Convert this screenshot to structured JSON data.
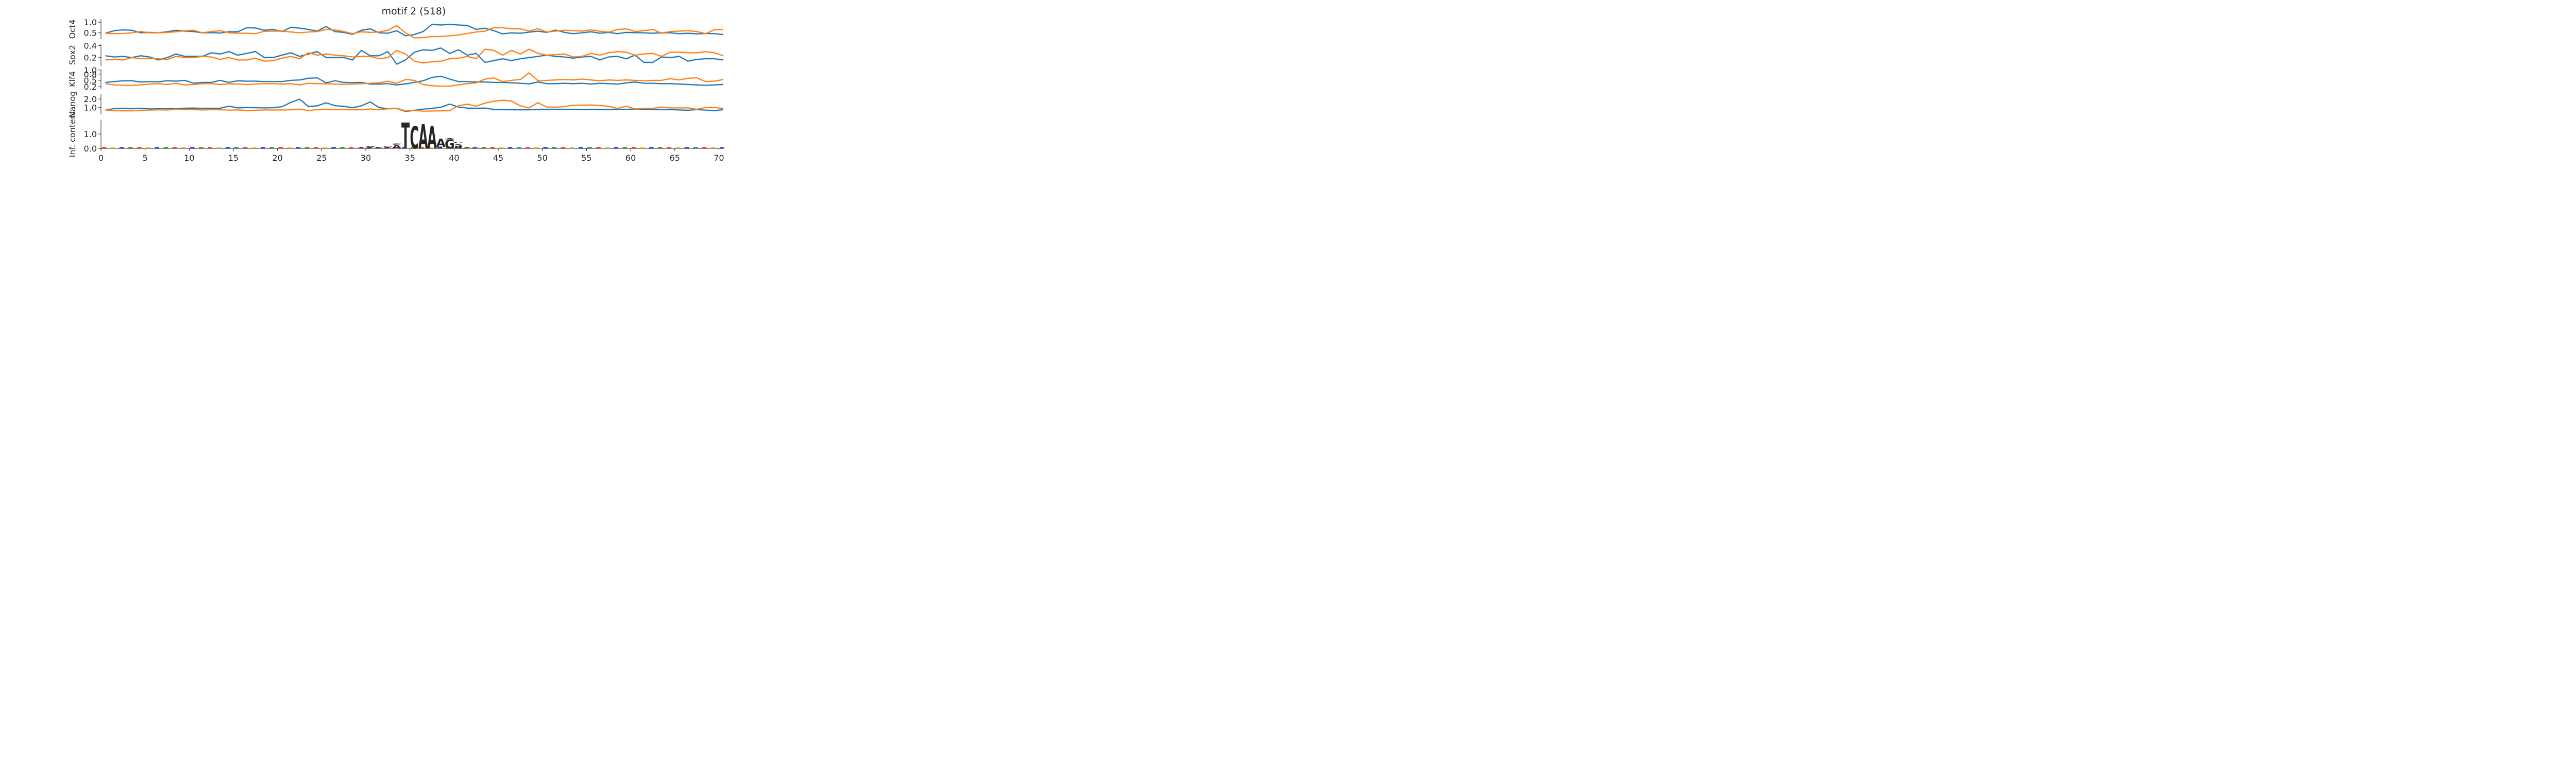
{
  "title": "motif 2 (518)",
  "colors": {
    "series_a": "#1f77b4",
    "series_b": "#ff7f0e",
    "axis": "#262626",
    "logo_A": "#008000",
    "logo_C": "#0000ff",
    "logo_G": "#ffa500",
    "logo_T": "#ff0000"
  },
  "chart_data": [
    {
      "type": "line",
      "title": "",
      "xlabel": "",
      "ylabel": "Oct4",
      "xlim": [
        0,
        70.5
      ],
      "ylim": [
        0.2,
        1.15
      ],
      "yticks": [
        0.5,
        1.0
      ],
      "ytick_labels": [
        "0.5",
        "1.0"
      ],
      "x_start": 0.5,
      "series": [
        {
          "color": "#1f77b4",
          "values": [
            0.48,
            0.6,
            0.64,
            0.62,
            0.5,
            0.52,
            0.5,
            0.55,
            0.62,
            0.58,
            0.56,
            0.5,
            0.51,
            0.49,
            0.55,
            0.55,
            0.74,
            0.73,
            0.62,
            0.66,
            0.56,
            0.76,
            0.72,
            0.66,
            0.58,
            0.8,
            0.56,
            0.52,
            0.43,
            0.62,
            0.69,
            0.5,
            0.48,
            0.6,
            0.36,
            0.42,
            0.56,
            0.9,
            0.87,
            0.9,
            0.87,
            0.85,
            0.66,
            0.72,
            0.6,
            0.45,
            0.5,
            0.48,
            0.53,
            0.58,
            0.52,
            0.63,
            0.52,
            0.46,
            0.5,
            0.55,
            0.48,
            0.52,
            0.46,
            0.52,
            0.51,
            0.5,
            0.48,
            0.5,
            0.5,
            0.46,
            0.48,
            0.45,
            0.47,
            0.46,
            0.42
          ]
        },
        {
          "color": "#ff7f0e",
          "values": [
            0.48,
            0.46,
            0.47,
            0.5,
            0.56,
            0.5,
            0.5,
            0.52,
            0.55,
            0.6,
            0.62,
            0.5,
            0.56,
            0.6,
            0.5,
            0.48,
            0.48,
            0.46,
            0.57,
            0.58,
            0.58,
            0.54,
            0.5,
            0.54,
            0.56,
            0.66,
            0.64,
            0.56,
            0.46,
            0.55,
            0.52,
            0.54,
            0.62,
            0.84,
            0.5,
            0.26,
            0.28,
            0.32,
            0.33,
            0.36,
            0.4,
            0.47,
            0.54,
            0.58,
            0.74,
            0.74,
            0.69,
            0.69,
            0.58,
            0.7,
            0.54,
            0.58,
            0.62,
            0.6,
            0.58,
            0.64,
            0.58,
            0.53,
            0.66,
            0.69,
            0.56,
            0.6,
            0.66,
            0.48,
            0.56,
            0.58,
            0.6,
            0.56,
            0.46,
            0.65,
            0.65
          ]
        }
      ]
    },
    {
      "type": "line",
      "title": "",
      "xlabel": "",
      "ylabel": "Sox2",
      "xlim": [
        0,
        70.5
      ],
      "ylim": [
        0.06,
        0.43
      ],
      "yticks": [
        0.2,
        0.4
      ],
      "ytick_labels": [
        "0.2",
        "0.4"
      ],
      "x_start": 0.5,
      "series": [
        {
          "color": "#1f77b4",
          "values": [
            0.23,
            0.21,
            0.22,
            0.2,
            0.23,
            0.21,
            0.16,
            0.2,
            0.26,
            0.22,
            0.22,
            0.22,
            0.28,
            0.26,
            0.3,
            0.24,
            0.27,
            0.3,
            0.2,
            0.2,
            0.24,
            0.28,
            0.22,
            0.26,
            0.3,
            0.2,
            0.2,
            0.2,
            0.16,
            0.32,
            0.23,
            0.23,
            0.3,
            0.09,
            0.16,
            0.29,
            0.33,
            0.32,
            0.36,
            0.27,
            0.33,
            0.24,
            0.27,
            0.12,
            0.15,
            0.18,
            0.15,
            0.18,
            0.2,
            0.22,
            0.24,
            0.22,
            0.21,
            0.19,
            0.21,
            0.22,
            0.16,
            0.21,
            0.22,
            0.18,
            0.24,
            0.12,
            0.12,
            0.21,
            0.2,
            0.22,
            0.14,
            0.17,
            0.18,
            0.18,
            0.16
          ]
        },
        {
          "color": "#ff7f0e",
          "values": [
            0.16,
            0.17,
            0.16,
            0.2,
            0.18,
            0.19,
            0.18,
            0.17,
            0.22,
            0.2,
            0.2,
            0.22,
            0.21,
            0.17,
            0.2,
            0.16,
            0.16,
            0.19,
            0.14,
            0.15,
            0.19,
            0.22,
            0.18,
            0.28,
            0.24,
            0.26,
            0.24,
            0.23,
            0.21,
            0.22,
            0.22,
            0.18,
            0.2,
            0.32,
            0.26,
            0.14,
            0.11,
            0.13,
            0.14,
            0.18,
            0.19,
            0.22,
            0.18,
            0.34,
            0.32,
            0.24,
            0.32,
            0.26,
            0.34,
            0.27,
            0.24,
            0.25,
            0.26,
            0.21,
            0.22,
            0.27,
            0.24,
            0.28,
            0.3,
            0.29,
            0.24,
            0.26,
            0.27,
            0.22,
            0.29,
            0.29,
            0.28,
            0.28,
            0.3,
            0.28,
            0.23
          ]
        }
      ]
    },
    {
      "type": "line",
      "title": "",
      "xlabel": "",
      "ylabel": "Klf4",
      "xlim": [
        0,
        70.5
      ],
      "ylim": [
        0.1,
        1.02
      ],
      "yticks": [
        0.2,
        0.5,
        0.8,
        1.0
      ],
      "ytick_labels": [
        "0.2",
        "0.5",
        "0.8",
        "1.0"
      ],
      "x_start": 0.5,
      "series": [
        {
          "color": "#1f77b4",
          "values": [
            0.4,
            0.44,
            0.48,
            0.48,
            0.42,
            0.44,
            0.43,
            0.48,
            0.46,
            0.5,
            0.36,
            0.4,
            0.4,
            0.5,
            0.4,
            0.48,
            0.46,
            0.46,
            0.44,
            0.44,
            0.44,
            0.5,
            0.52,
            0.6,
            0.62,
            0.38,
            0.48,
            0.4,
            0.39,
            0.4,
            0.32,
            0.32,
            0.34,
            0.28,
            0.33,
            0.4,
            0.48,
            0.64,
            0.7,
            0.56,
            0.44,
            0.44,
            0.42,
            0.42,
            0.4,
            0.4,
            0.38,
            0.36,
            0.33,
            0.42,
            0.34,
            0.34,
            0.36,
            0.34,
            0.36,
            0.32,
            0.36,
            0.34,
            0.32,
            0.38,
            0.42,
            0.36,
            0.36,
            0.34,
            0.34,
            0.32,
            0.3,
            0.28,
            0.26,
            0.28,
            0.3
          ]
        },
        {
          "color": "#ff7f0e",
          "values": [
            0.34,
            0.28,
            0.26,
            0.26,
            0.28,
            0.32,
            0.34,
            0.3,
            0.36,
            0.28,
            0.3,
            0.34,
            0.34,
            0.3,
            0.33,
            0.32,
            0.3,
            0.32,
            0.34,
            0.34,
            0.32,
            0.34,
            0.28,
            0.36,
            0.34,
            0.34,
            0.32,
            0.31,
            0.32,
            0.34,
            0.36,
            0.38,
            0.46,
            0.36,
            0.54,
            0.5,
            0.3,
            0.24,
            0.22,
            0.22,
            0.28,
            0.34,
            0.38,
            0.56,
            0.62,
            0.44,
            0.5,
            0.54,
            0.86,
            0.48,
            0.5,
            0.52,
            0.54,
            0.52,
            0.56,
            0.52,
            0.48,
            0.52,
            0.5,
            0.52,
            0.5,
            0.48,
            0.5,
            0.5,
            0.58,
            0.52,
            0.6,
            0.62,
            0.44,
            0.46,
            0.54
          ]
        }
      ]
    },
    {
      "type": "line",
      "title": "",
      "xlabel": "",
      "ylabel": "Nanog",
      "xlim": [
        0,
        70.5
      ],
      "ylim": [
        0.2,
        2.55
      ],
      "yticks": [
        1.0,
        2.0
      ],
      "ytick_labels": [
        "1.0",
        "2.0"
      ],
      "x_start": 0.5,
      "series": [
        {
          "color": "#1f77b4",
          "values": [
            0.7,
            0.88,
            0.9,
            0.86,
            0.92,
            0.84,
            0.86,
            0.86,
            0.86,
            0.92,
            0.94,
            0.9,
            0.92,
            0.92,
            1.16,
            0.96,
            1.0,
            0.98,
            0.96,
            0.98,
            1.1,
            1.6,
            1.98,
            1.12,
            1.2,
            1.56,
            1.22,
            1.14,
            0.98,
            1.2,
            1.66,
            1.0,
            0.86,
            0.9,
            0.54,
            0.68,
            0.82,
            0.9,
            1.04,
            1.4,
            1.06,
            0.94,
            0.92,
            0.94,
            0.78,
            0.76,
            0.74,
            0.74,
            0.74,
            0.78,
            0.78,
            0.8,
            0.8,
            0.8,
            0.76,
            0.78,
            0.78,
            0.76,
            0.8,
            0.8,
            0.82,
            0.8,
            0.78,
            0.76,
            0.76,
            0.72,
            0.68,
            0.76,
            0.7,
            0.64,
            0.76
          ]
        },
        {
          "color": "#ff7f0e",
          "values": [
            0.72,
            0.66,
            0.62,
            0.62,
            0.68,
            0.7,
            0.74,
            0.7,
            0.82,
            0.78,
            0.76,
            0.72,
            0.76,
            0.74,
            0.7,
            0.72,
            0.66,
            0.68,
            0.72,
            0.72,
            0.72,
            0.74,
            0.82,
            0.64,
            0.76,
            0.78,
            0.76,
            0.76,
            0.74,
            0.74,
            0.84,
            0.74,
            0.86,
            0.92,
            0.6,
            0.68,
            0.58,
            0.6,
            0.62,
            0.64,
            1.22,
            1.4,
            1.16,
            1.52,
            1.74,
            1.86,
            1.76,
            1.2,
            0.96,
            1.58,
            1.06,
            1.04,
            1.1,
            1.28,
            1.28,
            1.3,
            1.24,
            1.14,
            0.9,
            1.16,
            0.84,
            0.88,
            0.9,
            1.06,
            0.96,
            0.96,
            0.96,
            0.8,
            1.0,
            1.0,
            0.9
          ]
        }
      ]
    },
    {
      "type": "bar",
      "title": "",
      "xlabel": "",
      "ylabel": "Inf. content",
      "xlim": [
        0,
        70.5
      ],
      "ylim": [
        0,
        2.0
      ],
      "yticks": [
        0.0,
        1.0
      ],
      "ytick_labels": [
        "0.0",
        "1.0"
      ],
      "xticks": [
        0,
        5,
        10,
        15,
        20,
        25,
        30,
        35,
        40,
        45,
        50,
        55,
        60,
        65,
        70
      ],
      "xtick_labels": [
        "0",
        "5",
        "10",
        "15",
        "20",
        "25",
        "30",
        "35",
        "40",
        "45",
        "50",
        "55",
        "60",
        "65",
        "70"
      ],
      "logo": [
        {
          "pos": 29,
          "stack": [
            [
              "A",
              0.05
            ],
            [
              "T",
              0.04
            ]
          ]
        },
        {
          "pos": 30,
          "stack": [
            [
              "C",
              0.06
            ],
            [
              "T",
              0.04
            ],
            [
              "A",
              0.04
            ]
          ]
        },
        {
          "pos": 31,
          "stack": [
            [
              "A",
              0.05
            ],
            [
              "C",
              0.03
            ]
          ]
        },
        {
          "pos": 32,
          "stack": [
            [
              "C",
              0.05
            ],
            [
              "T",
              0.04
            ],
            [
              "G",
              0.03
            ]
          ]
        },
        {
          "pos": 33,
          "stack": [
            [
              "A",
              0.22
            ],
            [
              "C",
              0.06
            ],
            [
              "T",
              0.04
            ]
          ]
        },
        {
          "pos": 34,
          "stack": [
            [
              "T",
              1.8
            ]
          ]
        },
        {
          "pos": 35,
          "stack": [
            [
              "C",
              1.55
            ]
          ]
        },
        {
          "pos": 36,
          "stack": [
            [
              "A",
              1.7
            ]
          ]
        },
        {
          "pos": 37,
          "stack": [
            [
              "A",
              1.55
            ]
          ]
        },
        {
          "pos": 38,
          "stack": [
            [
              "T",
              0.12
            ],
            [
              "A",
              0.55
            ]
          ]
        },
        {
          "pos": 39,
          "stack": [
            [
              "G",
              0.62
            ],
            [
              "A",
              0.1
            ]
          ]
        },
        {
          "pos": 40,
          "stack": [
            [
              "a",
              0.38
            ],
            [
              "G",
              0.06
            ]
          ]
        },
        {
          "pos": 41,
          "stack": [
            [
              "C",
              0.05
            ],
            [
              "T",
              0.04
            ]
          ]
        },
        {
          "pos": 42,
          "stack": [
            [
              "C",
              0.03
            ]
          ]
        }
      ]
    }
  ]
}
